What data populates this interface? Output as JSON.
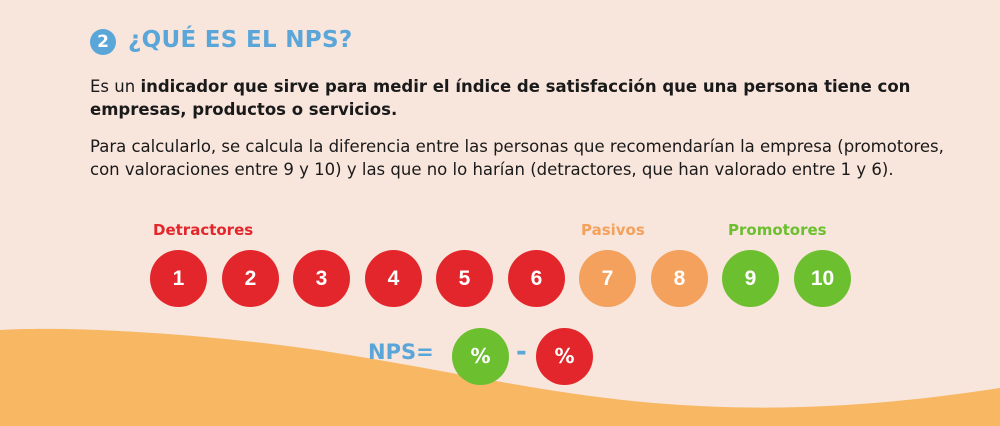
{
  "section": {
    "number": "2",
    "title": "¿QUÉ ES EL NPS?"
  },
  "intro": {
    "lead": "Es un ",
    "bold": "indicador que sirve para medir el índice de satisfacción que una persona tiene con empresas, productos o servicios."
  },
  "explanation": "Para calcularlo, se calcula la diferencia entre las personas que recomendarían la empresa (promotores, con valoraciones entre 9 y 10) y las que no lo harían (detractores, que han valorado entre 1 y 6).",
  "groups": {
    "detractors": "Detractores",
    "passives": "Pasivos",
    "promoters": "Promotores"
  },
  "scores": [
    {
      "value": "1",
      "group": "detractor"
    },
    {
      "value": "2",
      "group": "detractor"
    },
    {
      "value": "3",
      "group": "detractor"
    },
    {
      "value": "4",
      "group": "detractor"
    },
    {
      "value": "5",
      "group": "detractor"
    },
    {
      "value": "6",
      "group": "detractor"
    },
    {
      "value": "7",
      "group": "passive"
    },
    {
      "value": "8",
      "group": "passive"
    },
    {
      "value": "9",
      "group": "promoter"
    },
    {
      "value": "10",
      "group": "promoter"
    }
  ],
  "formula": {
    "label": "NPS=",
    "promoters_symbol": "%",
    "operator": "-",
    "detractors_symbol": "%"
  },
  "colors": {
    "background": "#f8e5dc",
    "wave": "#f7b763",
    "accent_blue": "#5aa6d9",
    "detractor": "#e3262b",
    "passive": "#f3a15c",
    "promoter": "#6cbf2f"
  }
}
